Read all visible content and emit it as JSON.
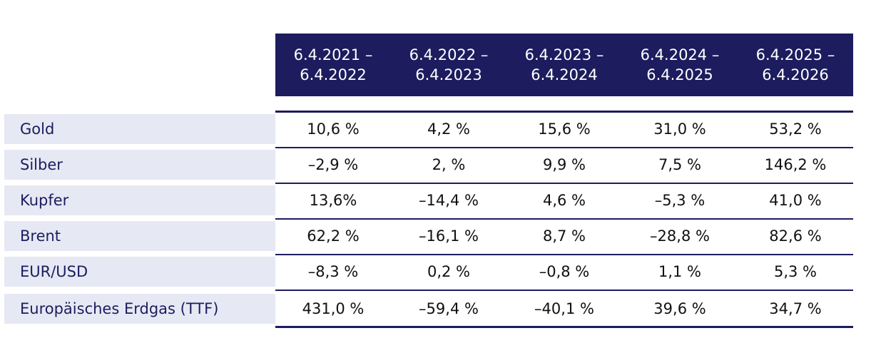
{
  "table": {
    "columns": [
      "6.4.2021 –\n6.4.2022",
      "6.4.2022 –\n6.4.2023",
      "6.4.2023 –\n6.4.2024",
      "6.4.2024 –\n6.4.2025",
      "6.4.2025 –\n6.4.2026"
    ],
    "rows": [
      {
        "label": "Gold",
        "values": [
          "10,6 %",
          "4,2 %",
          "15,6 %",
          "31,0 %",
          "53,2 %"
        ]
      },
      {
        "label": "Silber",
        "values": [
          "–2,9 %",
          "2, %",
          "9,9 %",
          "7,5 %",
          "146,2 %"
        ]
      },
      {
        "label": "Kupfer",
        "values": [
          "13,6%",
          "–14,4 %",
          "4,6 %",
          "–5,3 %",
          "41,0 %"
        ]
      },
      {
        "label": "Brent",
        "values": [
          "62,2 %",
          "–16,1 %",
          "8,7 %",
          "–28,8 %",
          "82,6 %"
        ]
      },
      {
        "label": "EUR/USD",
        "values": [
          "–8,3 %",
          "0,2 %",
          "–0,8 %",
          "1,1 %",
          "5,3 %"
        ]
      },
      {
        "label": "Europäisches Erdgas (TTF)",
        "values": [
          "431,0 %",
          "–59,4 %",
          "–40,1 %",
          "39,6 %",
          "34,7 %"
        ]
      }
    ]
  },
  "colors": {
    "header_bg": "#1c1c5e",
    "label_bg": "#e6e9f4",
    "label_text": "#1c1c5e",
    "rule": "#1c1c5e"
  }
}
